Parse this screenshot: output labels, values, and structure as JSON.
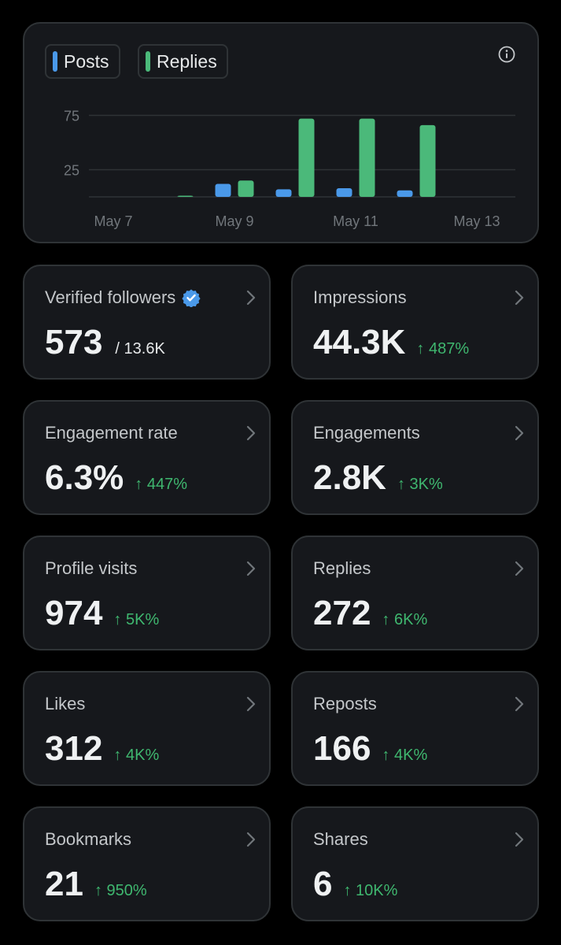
{
  "chart": {
    "legend": [
      {
        "label": "Posts",
        "color": "#4a99e9"
      },
      {
        "label": "Replies",
        "color": "#4bb97a"
      }
    ]
  },
  "chart_data": {
    "type": "bar",
    "categories": [
      "May 7",
      "May 8",
      "May 9",
      "May 10",
      "May 11",
      "May 12",
      "May 13"
    ],
    "series": [
      {
        "name": "Posts",
        "values": [
          0,
          0,
          12,
          7,
          8,
          6,
          0
        ]
      },
      {
        "name": "Replies",
        "values": [
          0,
          1,
          15,
          72,
          72,
          66,
          0
        ]
      }
    ],
    "xticks": [
      "May 7",
      "May 9",
      "May 11",
      "May 13"
    ],
    "yticks": [
      25,
      75
    ],
    "ylim": [
      0,
      85
    ],
    "grid": true,
    "legend_position": "top-left",
    "title": "",
    "xlabel": "",
    "ylabel": ""
  },
  "metrics": [
    {
      "label": "Verified followers",
      "value": "573",
      "sub": "/ 13.6K",
      "verified": true
    },
    {
      "label": "Impressions",
      "value": "44.3K",
      "change": "↑ 487%"
    },
    {
      "label": "Engagement rate",
      "value": "6.3%",
      "change": "↑ 447%"
    },
    {
      "label": "Engagements",
      "value": "2.8K",
      "change": "↑ 3K%"
    },
    {
      "label": "Profile visits",
      "value": "974",
      "change": "↑ 5K%"
    },
    {
      "label": "Replies",
      "value": "272",
      "change": "↑ 6K%"
    },
    {
      "label": "Likes",
      "value": "312",
      "change": "↑ 4K%"
    },
    {
      "label": "Reposts",
      "value": "166",
      "change": "↑ 4K%"
    },
    {
      "label": "Bookmarks",
      "value": "21",
      "change": "↑ 950%"
    },
    {
      "label": "Shares",
      "value": "6",
      "change": "↑ 10K%"
    }
  ],
  "icons": {
    "info": "info-icon",
    "chevron": "chevron-right-icon",
    "verified": "verified-badge-icon"
  }
}
